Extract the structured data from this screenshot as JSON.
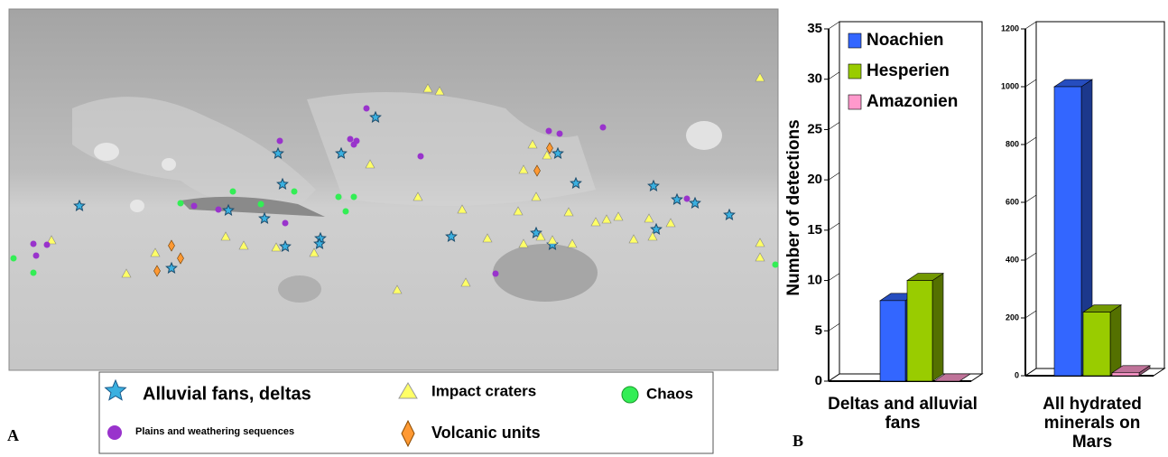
{
  "map": {
    "panel_label": "A",
    "legend": [
      "Alluvial fans, deltas",
      "Impact craters",
      "Chaos",
      "Plains and weathering sequences",
      "Volcanic units"
    ]
  },
  "panel_label_b": "B",
  "chart_data": [
    {
      "type": "bar",
      "y_label": "Number of detections",
      "categories": [
        "Deltas and alluvial fans"
      ],
      "series": [
        {
          "name": "Noachien",
          "color": "#3366ff",
          "values": [
            8
          ]
        },
        {
          "name": "Hesperien",
          "color": "#99cc00",
          "values": [
            10
          ]
        },
        {
          "name": "Amazonien",
          "color": "#ff99cc",
          "values": [
            0
          ]
        }
      ],
      "ylim": [
        0,
        35
      ],
      "yticks": [
        0,
        5,
        10,
        15,
        20,
        25,
        30,
        35
      ]
    },
    {
      "type": "bar",
      "categories": [
        "All hydrated minerals on Mars"
      ],
      "series": [
        {
          "color": "#3366ff",
          "values": [
            1000
          ]
        },
        {
          "color": "#99cc00",
          "values": [
            220
          ]
        },
        {
          "color": "#ff99cc",
          "values": [
            10
          ]
        }
      ],
      "ylim": [
        0,
        1200
      ],
      "yticks": [
        0,
        200,
        400,
        600,
        800,
        1000,
        1200
      ]
    }
  ]
}
